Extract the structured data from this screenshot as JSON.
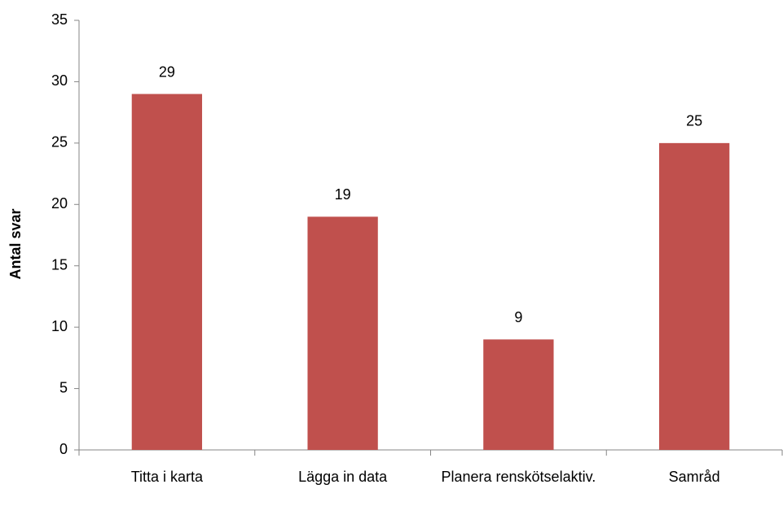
{
  "chart_data": {
    "type": "bar",
    "y_label": "Antal svar",
    "categories": [
      "Titta i karta",
      "Lägga in data",
      "Planera renskötselaktiv.",
      "Samråd"
    ],
    "values": [
      29,
      19,
      9,
      25
    ],
    "color": "#c0504d",
    "ylim": [
      0,
      35
    ],
    "yticks": [
      0,
      5,
      10,
      15,
      20,
      25,
      30,
      35
    ],
    "grid": false
  }
}
